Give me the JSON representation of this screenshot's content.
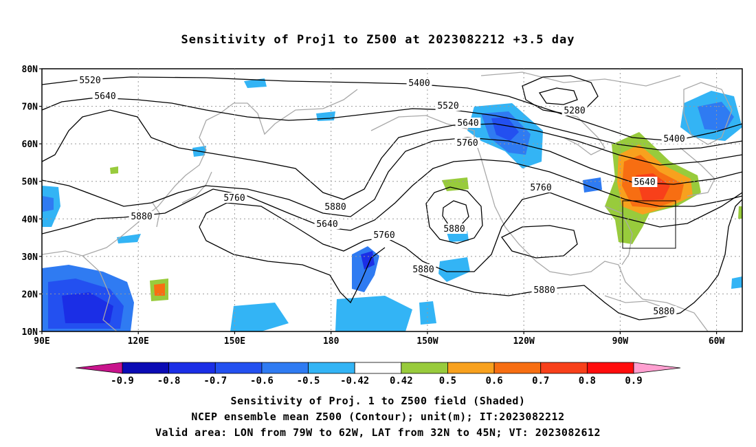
{
  "title": "Sensitivity of Proj1 to Z500 at 2023082212 +3.5 day",
  "map": {
    "lat_range": [
      10,
      80
    ],
    "lon_range_deg_east": [
      90,
      308
    ],
    "y_axis_labels": [
      "80N",
      "70N",
      "60N",
      "50N",
      "40N",
      "30N",
      "20N",
      "10N"
    ],
    "x_axis_labels": [
      "90E",
      "120E",
      "150E",
      "180",
      "150W",
      "120W",
      "90W",
      "60W"
    ],
    "contour_labels": [
      "5520",
      "5640",
      "5400",
      "5520",
      "5640",
      "5760",
      "5280",
      "5400",
      "5640",
      "5760",
      "5880",
      "5760",
      "5880",
      "5640",
      "5760",
      "5880",
      "5880",
      "5880",
      "5880"
    ],
    "valid_area": {
      "lon": [
        "79W",
        "62W"
      ],
      "lat": [
        "32N",
        "45N"
      ]
    }
  },
  "colorbar": {
    "labels": [
      "-0.9",
      "-0.8",
      "-0.7",
      "-0.6",
      "-0.5",
      "-0.42",
      "0.42",
      "0.5",
      "0.6",
      "0.7",
      "0.8",
      "0.9"
    ],
    "colors": [
      "#0b0bb4",
      "#1b2ee6",
      "#2350f0",
      "#2f7bf2",
      "#33b4f5",
      "#ffffff",
      "#98cb3c",
      "#f8a11e",
      "#f76e12",
      "#f8401a",
      "#ff0d0d"
    ],
    "end_low": "#c8148c",
    "end_high": "#ff9fd0"
  },
  "footer": {
    "line1": "Sensitivity of Proj. 1 to Z500 field (Shaded)",
    "line2": "NCEP ensemble mean Z500 (Contour); unit(m); IT:2023082212",
    "line3": "Valid area: LON from 79W to 62W, LAT from 32N to 45N; VT: 2023082612"
  }
}
